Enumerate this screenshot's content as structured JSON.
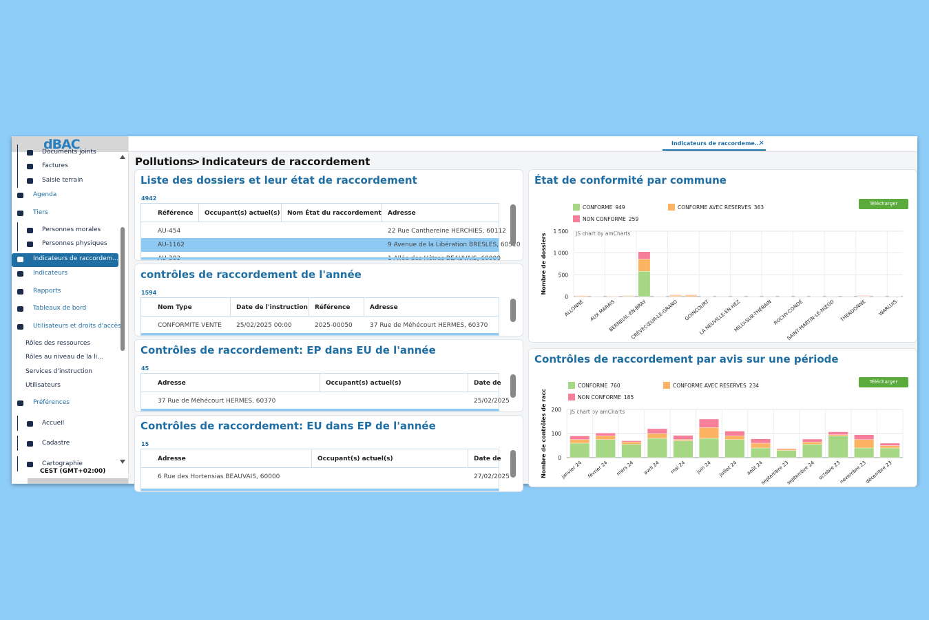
{
  "logo": "dBAC",
  "tab": {
    "label": "Indicateurs de raccordeme...",
    "close": "×"
  },
  "sidebar": {
    "items": [
      {
        "label": "Documents joints",
        "level": 1
      },
      {
        "label": "Factures",
        "level": 1
      },
      {
        "label": "Saisie terrain",
        "level": 1
      },
      {
        "label": "Agenda",
        "level": 0
      },
      {
        "label": "Tiers",
        "level": 0
      },
      {
        "label": "Personnes morales",
        "level": 1
      },
      {
        "label": "Personnes physiques",
        "level": 1
      },
      {
        "label": "Indicateurs de raccordem...",
        "level": 0,
        "active": true
      },
      {
        "label": "Indicateurs",
        "level": 0
      },
      {
        "label": "Rapports",
        "level": 0
      },
      {
        "label": "Tableaux de bord",
        "level": 0
      },
      {
        "label": "Utilisateurs et droits d'accès",
        "level": 0
      },
      {
        "label": "Rôles des ressources",
        "level": 2
      },
      {
        "label": "Rôles au niveau de la li...",
        "level": 2
      },
      {
        "label": "Services d'instruction",
        "level": 2
      },
      {
        "label": "Utilisateurs",
        "level": 2
      },
      {
        "label": "Préférences",
        "level": 0
      },
      {
        "label": "Accueil",
        "level": 1
      },
      {
        "label": "Cadastre",
        "level": 1
      },
      {
        "label": "Cartographie",
        "level": 1
      }
    ],
    "timezone": "CEST (GMT+02:00)"
  },
  "breadcrumb": {
    "parent": "Pollutions",
    "separator": ">",
    "current": "Indicateurs de raccordement"
  },
  "panels": [
    {
      "title": "Liste des dossiers et leur état de raccordement",
      "count": 4942,
      "columns": [
        "Référence",
        "Occupant(s) actuel(s)",
        "Nom État du raccordement",
        "Adresse"
      ],
      "rows": [
        [
          "AU-454",
          null,
          null,
          "22 Rue Canthereine HERCHIES, 60112"
        ],
        [
          "AU-1162",
          null,
          null,
          "9 Avenue de la Libération BRESLES, 60510"
        ],
        [
          "AU-383",
          null,
          null,
          "1 Allée des Hêtres BEAUVAIS, 60000"
        ]
      ],
      "selected_row": 1
    },
    {
      "title": "contrôles de raccordement de l'année",
      "count": 1594,
      "columns": [
        "Nom Type",
        "Date de l'instruction",
        "Référence",
        "Adresse"
      ],
      "rows": [
        [
          "CONFORMITE VENTE",
          "25/02/2025 00:00",
          "2025-00050",
          "37 Rue de Méhécourt HERMES, 60370"
        ]
      ]
    },
    {
      "title": "Contrôles de raccordement: EP dans EU de l'année",
      "count": 45,
      "columns": [
        "Adresse",
        "Occupant(s) actuel(s)",
        "Date de"
      ],
      "rows": [
        [
          "37 Rue de Méhécourt HERMES, 60370",
          null,
          "25/02/2025"
        ]
      ]
    },
    {
      "title": "Contrôles de raccordement: EU dans EP de l'année",
      "count": 15,
      "columns": [
        "Adresse",
        "Occupant(s) actuel(s)",
        "Date de"
      ],
      "rows": [
        [
          "6 Rue des Hortensias BEAUVAIS, 60000",
          null,
          "27/02/2025"
        ]
      ]
    }
  ],
  "chart_panels": [
    {
      "title": "État de conformité par commune",
      "download": "Télécharger",
      "credit": "JS chart by amCharts"
    },
    {
      "title": "Contrôles de raccordement par avis sur une période",
      "download": "Télécharger",
      "credit": "JS chart by amCharts"
    }
  ],
  "chart_data": [
    {
      "type": "bar",
      "stacked": true,
      "grid": true,
      "y_label": "Nombre de dossiers",
      "categories": [
        "ALLONNE",
        null,
        "AUX MARAIS",
        null,
        "BERNEUIL-EN-BRAY",
        null,
        "CRÈVECŒUR-LE-GRAND",
        null,
        "GOINCOURT",
        null,
        "LA NEUVILLE-EN-HEZ",
        null,
        "MILLY-SUR-THÉRAIN",
        null,
        "ROCHY-CONDÉ",
        null,
        "SAINT-MARTIN-LE-NŒUD",
        null,
        "THERDONNE",
        null,
        "WARLUIS"
      ],
      "ylim": [
        0,
        1500
      ],
      "yticks": [
        0,
        500,
        {
          "value": 1000,
          "label": "1 000"
        },
        {
          "value": 1500,
          "label": "1 500"
        }
      ],
      "series": [
        {
          "name": "CONFORME",
          "total": 949,
          "color": "#a6d785",
          "values": [
            5,
            0,
            5,
            10,
            580,
            0,
            5,
            0,
            5,
            0,
            2,
            0,
            0,
            0,
            0,
            0,
            0,
            0,
            5,
            0,
            0
          ]
        },
        {
          "name": "CONFORME AVEC RESERVES",
          "total": 363,
          "color": "#fdb462",
          "values": [
            15,
            5,
            10,
            15,
            280,
            5,
            25,
            30,
            5,
            5,
            5,
            3,
            5,
            3,
            3,
            3,
            5,
            5,
            10,
            5,
            5
          ]
        },
        {
          "name": "NON CONFORME",
          "total": 259,
          "color": "#f77f9a",
          "values": [
            5,
            3,
            3,
            5,
            170,
            3,
            10,
            10,
            3,
            3,
            3,
            3,
            3,
            3,
            3,
            3,
            3,
            5,
            10,
            3,
            3
          ]
        }
      ]
    },
    {
      "type": "bar",
      "stacked": true,
      "grid": true,
      "y_label": "Nombre de contrôles de racc",
      "categories": [
        "janvier 24",
        "février 24",
        "mars 24",
        "avril 24",
        "mai 24",
        "juin 24",
        "juillet 24",
        "août 24",
        "septembre 23",
        "septembre 24",
        "octobre 23",
        "novembre 23",
        "décembre 23"
      ],
      "ylim": [
        0,
        200
      ],
      "yticks": [
        0,
        100,
        200
      ],
      "series": [
        {
          "name": "CONFORME",
          "total": 760,
          "color": "#a6d785",
          "values": [
            60,
            75,
            55,
            80,
            70,
            80,
            75,
            40,
            30,
            55,
            90,
            40,
            40
          ]
        },
        {
          "name": "CONFORME AVEC RESERVES",
          "total": 234,
          "color": "#fdb462",
          "values": [
            15,
            15,
            10,
            20,
            5,
            45,
            15,
            20,
            5,
            10,
            5,
            35,
            10
          ]
        },
        {
          "name": "NON CONFORME",
          "total": 185,
          "color": "#f77f9a",
          "values": [
            15,
            12,
            5,
            20,
            17,
            35,
            20,
            18,
            3,
            12,
            12,
            20,
            10
          ]
        }
      ]
    }
  ]
}
